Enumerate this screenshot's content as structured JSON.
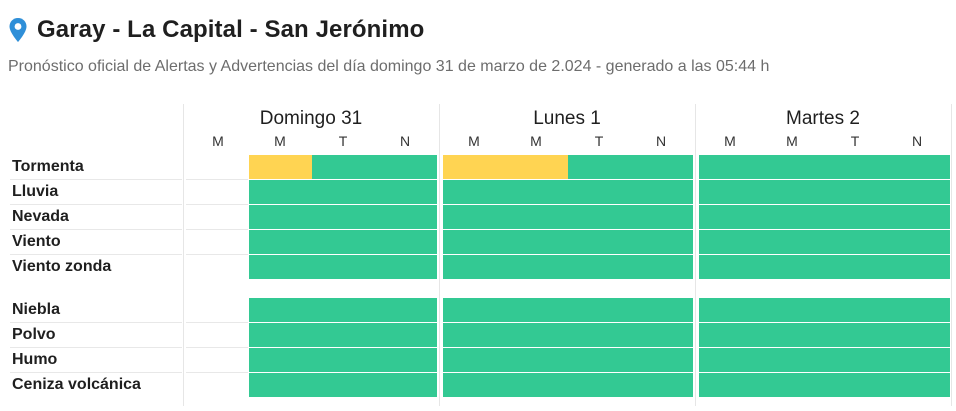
{
  "location": {
    "title": "Garay - La Capital - San Jerónimo",
    "icon": "map-pin-icon"
  },
  "subtitle": "Pronóstico oficial de Alertas y Advertencias del día domingo 31 de marzo de 2.024 - generado a las 05:44 h",
  "colors": {
    "no_alert": "#33c993",
    "yellow_alert": "#ffd452",
    "pin": "#2f8fd8"
  },
  "days": [
    {
      "label": "Domingo 31",
      "shifts": [
        "M",
        "M",
        "T",
        "N"
      ]
    },
    {
      "label": "Lunes 1",
      "shifts": [
        "M",
        "M",
        "T",
        "N"
      ]
    },
    {
      "label": "Martes 2",
      "shifts": [
        "M",
        "M",
        "T",
        "N"
      ]
    }
  ],
  "phenomena_group_1": [
    {
      "label": "Tormenta",
      "levels": [
        [
          "none",
          "yellow",
          "green",
          "green",
          "green"
        ],
        [
          "yellow",
          "yellow",
          "green",
          "green"
        ],
        [
          "green",
          "green",
          "green",
          "green"
        ]
      ]
    },
    {
      "label": "Lluvia",
      "levels": [
        [
          "none",
          "green",
          "green",
          "green",
          "green"
        ],
        [
          "green",
          "green",
          "green",
          "green"
        ],
        [
          "green",
          "green",
          "green",
          "green"
        ]
      ]
    },
    {
      "label": "Nevada",
      "levels": [
        [
          "none",
          "green",
          "green",
          "green",
          "green"
        ],
        [
          "green",
          "green",
          "green",
          "green"
        ],
        [
          "green",
          "green",
          "green",
          "green"
        ]
      ]
    },
    {
      "label": "Viento",
      "levels": [
        [
          "none",
          "green",
          "green",
          "green",
          "green"
        ],
        [
          "green",
          "green",
          "green",
          "green"
        ],
        [
          "green",
          "green",
          "green",
          "green"
        ]
      ]
    },
    {
      "label": "Viento zonda",
      "levels": [
        [
          "none",
          "green",
          "green",
          "green",
          "green"
        ],
        [
          "green",
          "green",
          "green",
          "green"
        ],
        [
          "green",
          "green",
          "green",
          "green"
        ]
      ]
    }
  ],
  "phenomena_group_2": [
    {
      "label": "Niebla"
    },
    {
      "label": "Polvo"
    },
    {
      "label": "Humo"
    },
    {
      "label": "Ceniza volcánica"
    }
  ]
}
